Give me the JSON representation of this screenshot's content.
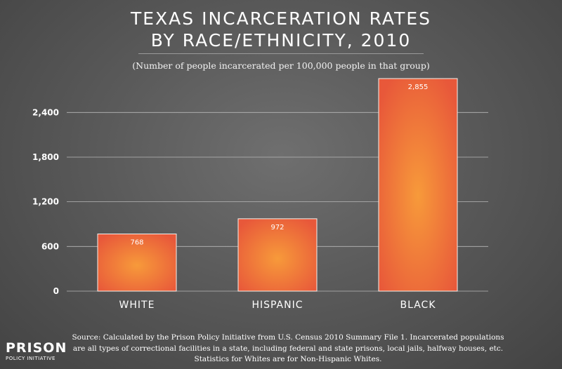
{
  "title_line1": "TEXAS INCARCERATION RATES",
  "title_line2": "BY RACE/ETHNICITY, 2010",
  "subtitle": "(Number of people incarcerated per 100,000 people in that group)",
  "chart_data": {
    "type": "bar",
    "categories": [
      "WHITE",
      "HISPANIC",
      "BLACK"
    ],
    "values": [
      768,
      972,
      2855
    ],
    "value_labels": [
      "768",
      "972",
      "2,855"
    ],
    "ylim": [
      0,
      2855
    ],
    "yticks": [
      0,
      600,
      1200,
      1800,
      2400
    ],
    "ytick_labels": [
      "0",
      "600",
      "1,200",
      "1,800",
      "2,400"
    ],
    "grid": true,
    "bar_color": "#f07a3a"
  },
  "source_lines": [
    "Source: Calculated by the Prison Policy Initiative from U.S. Census 2010 Summary File 1. Incarcerated populations",
    "are all types of correctional facilities in a state, including federal and state prisons, local jails, halfway houses, etc.",
    "Statistics for Whites are for Non-Hispanic Whites."
  ],
  "logo": {
    "main": "PRISON",
    "sub": "POLICY INITIATIVE"
  }
}
